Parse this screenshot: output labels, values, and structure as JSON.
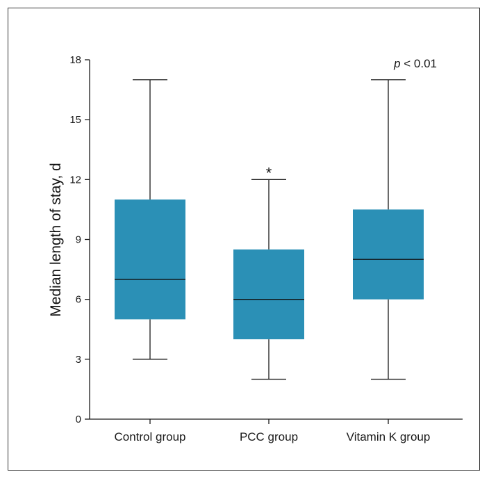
{
  "chart_data": {
    "type": "box",
    "ylabel": "Median length of stay, d",
    "ylim": [
      0,
      18
    ],
    "yticks": [
      0,
      3,
      6,
      9,
      12,
      15,
      18
    ],
    "categories": [
      "Control group",
      "PCC group",
      "Vitamin K group"
    ],
    "boxes": [
      {
        "category": "Control group",
        "whisker_low": 3,
        "q1": 5,
        "median": 7,
        "q3": 11,
        "whisker_high": 17,
        "marker": ""
      },
      {
        "category": "PCC group",
        "whisker_low": 2,
        "q1": 4,
        "median": 6,
        "q3": 8.5,
        "whisker_high": 12,
        "marker": "*"
      },
      {
        "category": "Vitamin K group",
        "whisker_low": 2,
        "q1": 6,
        "median": 8,
        "q3": 10.5,
        "whisker_high": 17,
        "marker": ""
      }
    ],
    "annotation": {
      "italic": "p",
      "text": " < 0.01"
    },
    "box_color": "#2b90b6"
  }
}
